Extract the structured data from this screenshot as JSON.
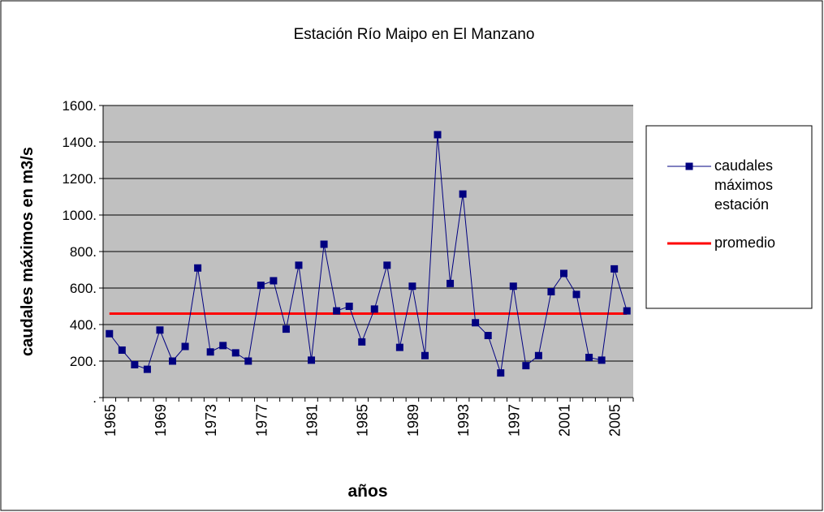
{
  "chart_data": {
    "type": "line",
    "title": "Estación Río Maipo en El Manzano",
    "ylabel": "caudales máximos en m3/s",
    "xlabel": "años",
    "categories": [
      "1965",
      null,
      null,
      null,
      "1969",
      null,
      null,
      null,
      "1973",
      null,
      null,
      null,
      "1977",
      null,
      null,
      null,
      "1981",
      null,
      null,
      null,
      "1985",
      null,
      null,
      null,
      "1989",
      null,
      null,
      null,
      "1993",
      null,
      null,
      null,
      "1997",
      null,
      null,
      null,
      "2001",
      null,
      null,
      null,
      "2005",
      null
    ],
    "series": [
      {
        "name": "caudales máximos estación",
        "color": "#000080",
        "marker": "square",
        "values": [
          350,
          260,
          180,
          155,
          370,
          200,
          280,
          710,
          250,
          285,
          245,
          200,
          615,
          640,
          375,
          725,
          205,
          840,
          475,
          500,
          305,
          485,
          725,
          275,
          610,
          230,
          1440,
          625,
          1115,
          410,
          340,
          135,
          610,
          175,
          230,
          580,
          680,
          565,
          220,
          205,
          705,
          475
        ]
      },
      {
        "name": "promedio",
        "color": "#ff0000",
        "values": [
          460,
          460,
          460,
          460,
          460,
          460,
          460,
          460,
          460,
          460,
          460,
          460,
          460,
          460,
          460,
          460,
          460,
          460,
          460,
          460,
          460,
          460,
          460,
          460,
          460,
          460,
          460,
          460,
          460,
          460,
          460,
          460,
          460,
          460,
          460,
          460,
          460,
          460,
          460,
          460,
          460,
          460
        ]
      }
    ],
    "ylim": [
      0,
      1600
    ],
    "yticks": [
      {
        "value": 0,
        "label": "."
      },
      {
        "value": 200,
        "label": "200."
      },
      {
        "value": 400,
        "label": "400."
      },
      {
        "value": 600,
        "label": "600."
      },
      {
        "value": 800,
        "label": "800."
      },
      {
        "value": 1000,
        "label": "1000."
      },
      {
        "value": 1200,
        "label": "1200."
      },
      {
        "value": 1400,
        "label": "1400."
      },
      {
        "value": 1600,
        "label": "1600."
      }
    ],
    "grid": true,
    "plot_background": "#c0c0c0",
    "legend": "right"
  }
}
